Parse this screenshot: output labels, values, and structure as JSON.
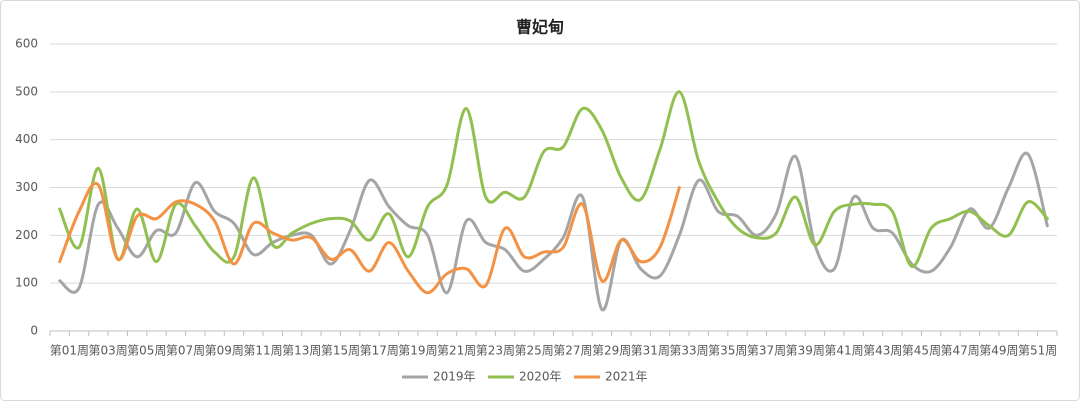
{
  "chart_data": {
    "type": "line",
    "title": "曹妃甸",
    "categories": [
      "第01周",
      null,
      "第03周",
      null,
      "第05周",
      null,
      "第07周",
      null,
      "第09周",
      null,
      "第11周",
      null,
      "第13周",
      null,
      "第15周",
      null,
      "第17周",
      null,
      "第19周",
      null,
      "第21周",
      null,
      "第23周",
      null,
      "第25周",
      null,
      "第27周",
      null,
      "第29周",
      null,
      "第31周",
      null,
      "第33周",
      null,
      "第35周",
      null,
      "第37周",
      null,
      "第39周",
      null,
      "第41周",
      null,
      "第43周",
      null,
      "第45周",
      null,
      "第47周",
      null,
      "第49周",
      null,
      "第51周",
      null
    ],
    "series": [
      {
        "name": "2019年",
        "color": "#a5a5a5",
        "values": [
          105,
          90,
          265,
          215,
          155,
          210,
          205,
          310,
          250,
          225,
          160,
          185,
          200,
          200,
          140,
          210,
          315,
          260,
          220,
          200,
          80,
          230,
          185,
          170,
          125,
          150,
          195,
          280,
          45,
          190,
          130,
          115,
          200,
          315,
          250,
          240,
          200,
          245,
          365,
          180,
          130,
          280,
          215,
          205,
          140,
          125,
          175,
          255,
          215,
          300,
          370,
          220
        ]
      },
      {
        "name": "2020年",
        "color": "#92c050",
        "values": [
          255,
          175,
          340,
          150,
          255,
          145,
          265,
          220,
          165,
          155,
          320,
          180,
          205,
          225,
          235,
          230,
          190,
          245,
          155,
          260,
          305,
          465,
          280,
          290,
          280,
          375,
          385,
          465,
          420,
          320,
          275,
          380,
          500,
          355,
          270,
          215,
          195,
          205,
          280,
          180,
          250,
          265,
          265,
          250,
          135,
          215,
          235,
          250,
          220,
          200,
          270,
          235
        ]
      },
      {
        "name": "2021年",
        "color": "#f39244",
        "values": [
          145,
          250,
          305,
          150,
          240,
          235,
          270,
          265,
          230,
          140,
          225,
          205,
          190,
          195,
          150,
          170,
          125,
          185,
          125,
          80,
          120,
          130,
          95,
          215,
          155,
          165,
          175,
          265,
          105,
          190,
          145,
          175,
          300,
          null,
          null,
          null,
          null,
          null,
          null,
          null,
          null,
          null,
          null,
          null,
          null,
          null,
          null,
          null,
          null,
          null,
          null,
          null
        ]
      }
    ],
    "ylim": [
      0,
      600
    ],
    "yticks": [
      0,
      100,
      200,
      300,
      400,
      500,
      600
    ],
    "grid": true,
    "legend": "bottom"
  }
}
